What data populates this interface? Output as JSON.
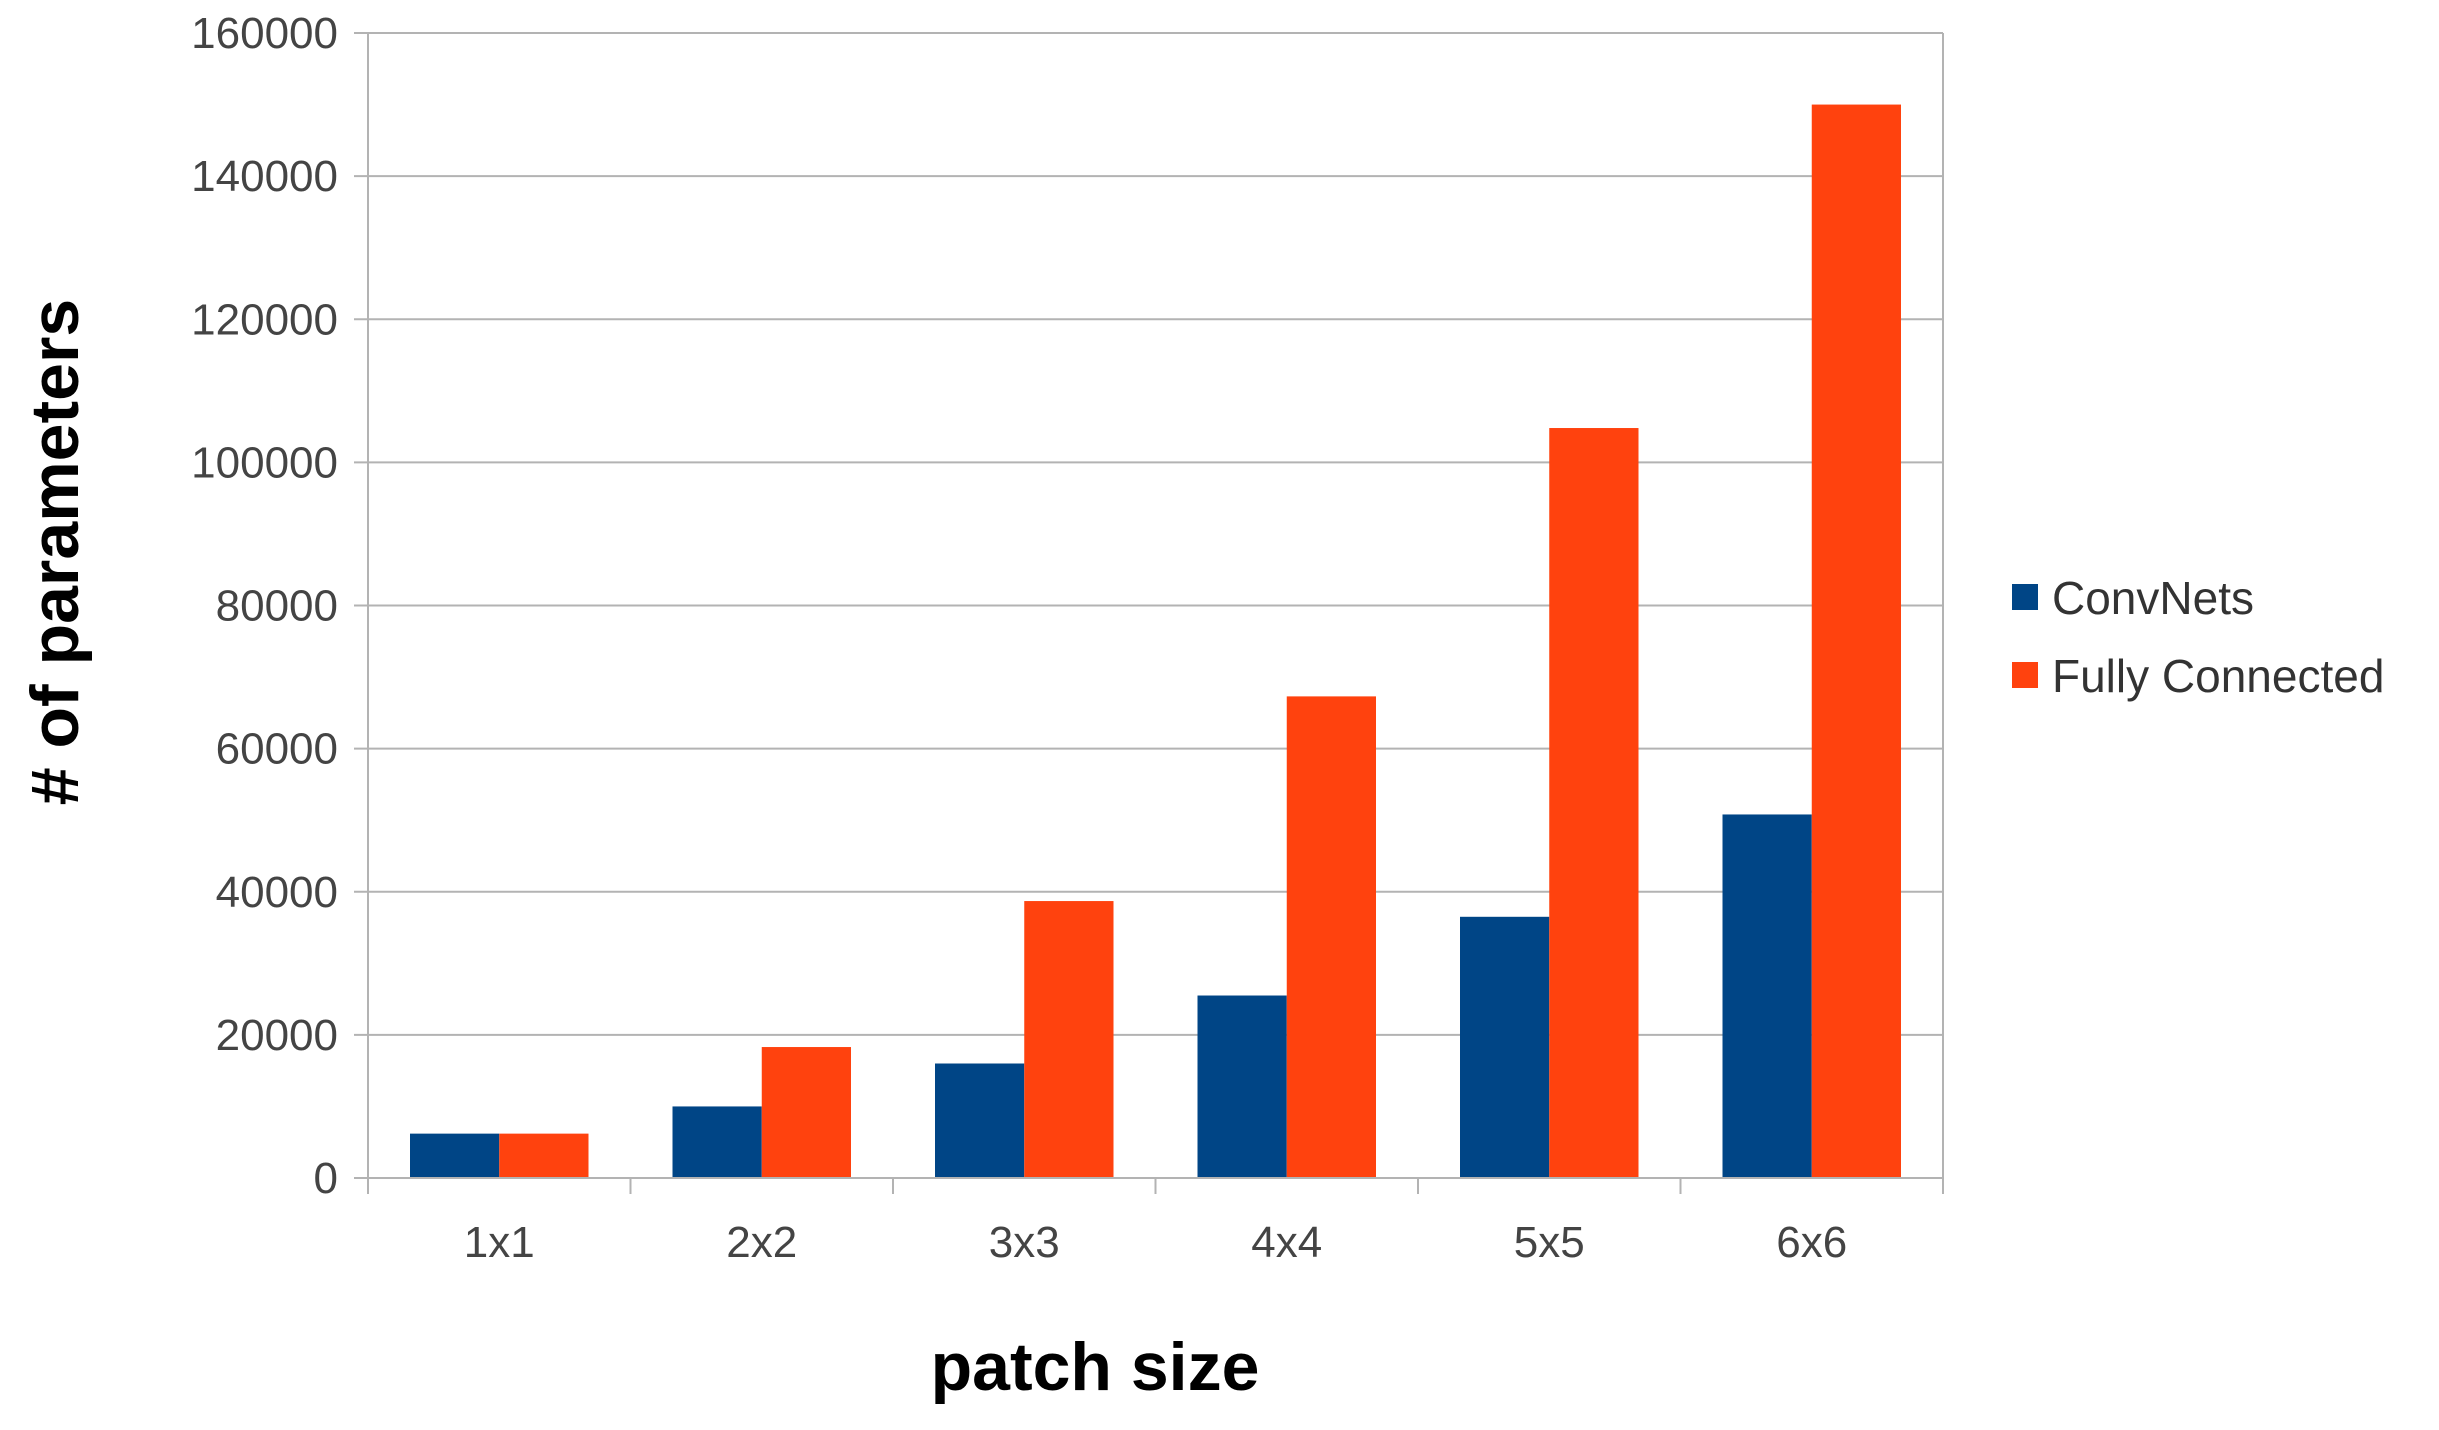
{
  "chart_data": {
    "type": "bar",
    "title": "",
    "xlabel": "patch size",
    "ylabel": "# of parameters",
    "categories": [
      "1x1",
      "2x2",
      "3x3",
      "4x4",
      "5x5",
      "6x6"
    ],
    "series": [
      {
        "name": "ConvNets",
        "color": "#004586",
        "values": [
          6200,
          10000,
          16000,
          25500,
          36500,
          50800
        ]
      },
      {
        "name": "Fully Connected",
        "color": "#FF420E",
        "values": [
          6200,
          18300,
          38700,
          67300,
          104800,
          150000
        ]
      }
    ],
    "ylim": [
      0,
      160000
    ],
    "yticks": [
      0,
      20000,
      40000,
      60000,
      80000,
      100000,
      120000,
      140000,
      160000
    ],
    "grid": true,
    "legend_position": "right"
  }
}
